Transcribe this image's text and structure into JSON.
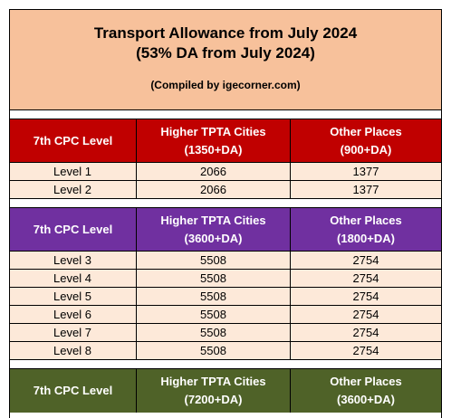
{
  "title": {
    "line1": "Transport Allowance from July 2024",
    "line2": "(53% DA from July 2024)",
    "compiled": "(Compiled by igecorner.com)"
  },
  "sections": [
    {
      "header": {
        "col1": "7th CPC Level",
        "col2_title": "Higher TPTA Cities",
        "col2_sub": "(1350+DA)",
        "col3_title": "Other Places",
        "col3_sub": "(900+DA)",
        "color": "#c00000"
      },
      "rows": [
        {
          "level": "Level 1",
          "higher": "2066",
          "other": "1377"
        },
        {
          "level": "Level 2",
          "higher": "2066",
          "other": "1377"
        }
      ]
    },
    {
      "header": {
        "col1": "7th CPC Level",
        "col2_title": "Higher TPTA Cities",
        "col2_sub": "(3600+DA)",
        "col3_title": "Other Places",
        "col3_sub": "(1800+DA)",
        "color": "#7030a0"
      },
      "rows": [
        {
          "level": "Level 3",
          "higher": "5508",
          "other": "2754"
        },
        {
          "level": "Level 4",
          "higher": "5508",
          "other": "2754"
        },
        {
          "level": "Level 5",
          "higher": "5508",
          "other": "2754"
        },
        {
          "level": "Level 6",
          "higher": "5508",
          "other": "2754"
        },
        {
          "level": "Level 7",
          "higher": "5508",
          "other": "2754"
        },
        {
          "level": "Level 8",
          "higher": "5508",
          "other": "2754"
        }
      ]
    },
    {
      "header": {
        "col1": "7th CPC Level",
        "col2_title": "Higher TPTA Cities",
        "col2_sub": "(7200+DA)",
        "col3_title": "Other Places",
        "col3_sub": "(3600+DA)",
        "color": "#4f6228"
      },
      "rows": []
    }
  ]
}
